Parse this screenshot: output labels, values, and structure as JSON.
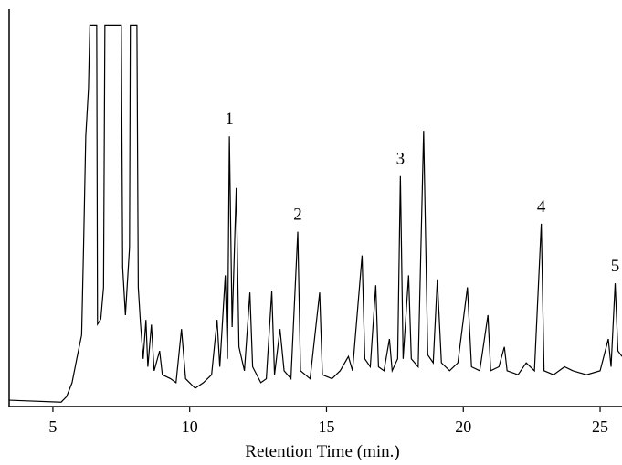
{
  "chart_data": {
    "type": "line",
    "xlabel": "Retention Time (min.)",
    "xlim": [
      3.4,
      25.8
    ],
    "xticks": [
      5,
      10,
      15,
      20,
      25
    ],
    "ylim": [
      0,
      100
    ],
    "color": "#000000",
    "x": [
      3.4,
      5.3,
      5.5,
      5.7,
      5.9,
      6.05,
      6.12,
      6.2,
      6.3,
      6.35,
      6.6,
      6.63,
      6.75,
      6.85,
      6.9,
      7.5,
      7.55,
      7.65,
      7.8,
      7.83,
      8.07,
      8.12,
      8.2,
      8.3,
      8.4,
      8.47,
      8.6,
      8.7,
      8.9,
      9.0,
      9.3,
      9.5,
      9.7,
      9.85,
      10.2,
      10.5,
      10.8,
      11.0,
      11.1,
      11.3,
      11.38,
      11.45,
      11.55,
      11.7,
      11.8,
      12.0,
      12.2,
      12.3,
      12.6,
      12.8,
      13.0,
      13.1,
      13.3,
      13.45,
      13.7,
      13.95,
      14.05,
      14.4,
      14.75,
      14.85,
      15.2,
      15.5,
      15.8,
      15.95,
      16.3,
      16.4,
      16.6,
      16.8,
      16.9,
      17.1,
      17.3,
      17.4,
      17.6,
      17.7,
      17.8,
      18.0,
      18.1,
      18.35,
      18.55,
      18.7,
      18.9,
      19.05,
      19.2,
      19.5,
      19.8,
      20.15,
      20.3,
      20.6,
      20.9,
      21.0,
      21.3,
      21.5,
      21.6,
      22.0,
      22.3,
      22.6,
      22.85,
      22.95,
      23.3,
      23.7,
      24.0,
      24.5,
      25.0,
      25.3,
      25.4,
      25.55,
      25.65,
      25.8
    ],
    "values": [
      1.6,
      1.1,
      2.5,
      6,
      13,
      18,
      40,
      68,
      80,
      96,
      96,
      20.7,
      22,
      30,
      96,
      96,
      35,
      23,
      40,
      96,
      96,
      30,
      21,
      12,
      21.8,
      10,
      20.6,
      9,
      14,
      8,
      7,
      6,
      19.5,
      7,
      4.6,
      6,
      8,
      21.8,
      10,
      33,
      12,
      68,
      20,
      55,
      15,
      9,
      28.7,
      10,
      6,
      7,
      29,
      8,
      19.5,
      9,
      7,
      44,
      9,
      7,
      28.7,
      8,
      7,
      9,
      12.6,
      9,
      38,
      12,
      10,
      30.5,
      10,
      9,
      17,
      9,
      12,
      58,
      12,
      33,
      12,
      10,
      69.4,
      13,
      11,
      32,
      11,
      9,
      11,
      30,
      10,
      9,
      23,
      9,
      10,
      15,
      9,
      8,
      11,
      9,
      46,
      9,
      8,
      10,
      9,
      8,
      9,
      17,
      10,
      31,
      14,
      12.6
    ],
    "annotations": [
      {
        "text": "1",
        "x": 11.45
      },
      {
        "text": "2",
        "x": 13.95
      },
      {
        "text": "3",
        "x": 17.7
      },
      {
        "text": "4",
        "x": 22.85
      },
      {
        "text": "5",
        "x": 25.55
      }
    ]
  }
}
